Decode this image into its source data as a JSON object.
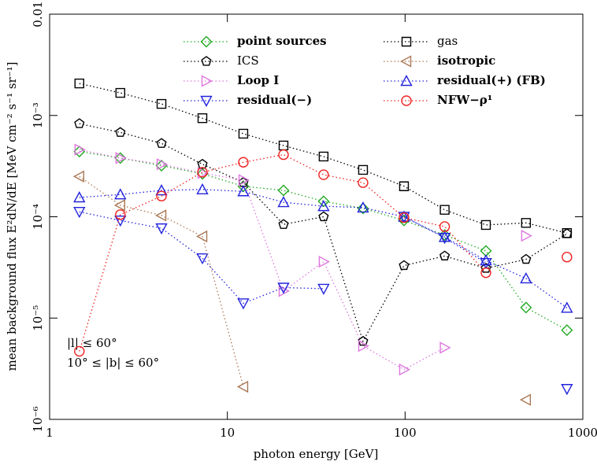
{
  "chart_data": {
    "type": "line",
    "xlabel": "photon energy [GeV]",
    "ylabel": "mean background flux E²dN/dE [MeV cm⁻² s⁻¹ sr⁻¹]",
    "xscale": "log",
    "yscale": "log",
    "xlim": [
      1,
      1000
    ],
    "ylim": [
      1e-06,
      0.01
    ],
    "xticks": [
      1,
      10,
      100,
      1000
    ],
    "yticks": [
      {
        "value": 1e-06,
        "label": "10⁻⁶"
      },
      {
        "value": 1e-05,
        "label": "10⁻⁵"
      },
      {
        "value": 0.0001,
        "label": "10⁻⁴"
      },
      {
        "value": 0.001,
        "label": "10⁻³"
      },
      0.01
    ],
    "annotations": [
      "|l| ≤ 60°",
      "10° ≤ |b| ≤ 60°"
    ],
    "x": [
      1.47,
      2.5,
      4.26,
      7.24,
      12.3,
      20.7,
      34.8,
      58,
      98.6,
      167,
      285,
      479,
      814
    ],
    "series": [
      {
        "name": "point sources",
        "color": "#22aa22",
        "marker": "diamond",
        "values": [
          0.00044,
          0.00038,
          0.00032,
          0.000265,
          0.0002,
          0.000182,
          0.000142,
          0.000121,
          9.2e-05,
          6.6e-05,
          4.6e-05,
          1.27e-05,
          7.6e-06
        ]
      },
      {
        "name": "ICS",
        "color": "#000000",
        "marker": "pentagon",
        "values": [
          0.00083,
          0.00068,
          0.00053,
          0.00033,
          0.000218,
          8.4e-05,
          0.0001,
          5.9e-06,
          3.3e-05,
          4.1e-05,
          3.1e-05,
          3.8e-05,
          6.8e-05
        ]
      },
      {
        "name": "Loop I",
        "color": "#dd77dd",
        "marker": "triangle-right",
        "values": [
          0.00046,
          0.00038,
          0.00033,
          0.00027,
          0.00023,
          1.85e-05,
          3.6e-05,
          5.3e-06,
          3.1e-06,
          5.1e-06,
          null,
          6.5e-05,
          null
        ]
      },
      {
        "name": "residual(−)",
        "color": "#2222dd",
        "marker": "triangle-down",
        "values": [
          0.000112,
          9.2e-05,
          7.7e-05,
          3.9e-05,
          1.4e-05,
          2e-05,
          1.95e-05,
          null,
          0.0001,
          6.2e-05,
          3.5e-05,
          null,
          2e-06
        ]
      },
      {
        "name": "gas",
        "color": "#000000",
        "marker": "square",
        "values": [
          0.00207,
          0.00167,
          0.0013,
          0.00094,
          0.00066,
          0.000505,
          0.000393,
          0.00029,
          0.0002,
          0.000117,
          8.3e-05,
          8.7e-05,
          6.9e-05
        ]
      },
      {
        "name": "isotropic",
        "color": "#aa7755",
        "marker": "triangle-left",
        "values": [
          0.00025,
          0.00013,
          0.000103,
          6.4e-05,
          2.1e-06,
          null,
          null,
          null,
          null,
          null,
          null,
          1.56e-06,
          null
        ]
      },
      {
        "name": "residual(+) (FB)",
        "color": "#2222dd",
        "marker": "triangle-up",
        "values": [
          0.000155,
          0.000166,
          0.000182,
          0.000186,
          0.000178,
          0.000139,
          0.000127,
          0.000123,
          0.0001,
          6.3e-05,
          3.7e-05,
          2.46e-05,
          1.26e-05
        ]
      },
      {
        "name": "NFW−ρ¹",
        "color": "#ee2222",
        "marker": "circle",
        "values": [
          4.7e-06,
          0.000105,
          0.00016,
          0.000275,
          0.000345,
          0.00041,
          0.00026,
          0.000217,
          9.8e-05,
          8e-05,
          2.8e-05,
          null,
          4e-05
        ]
      }
    ]
  }
}
